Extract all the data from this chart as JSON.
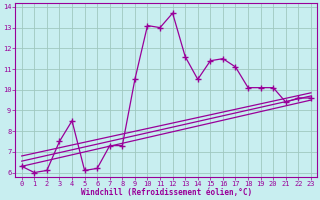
{
  "xlabel": "Windchill (Refroidissement éolien,°C)",
  "background_color": "#c8eef0",
  "grid_color": "#a0c8c0",
  "line_color": "#990099",
  "xlim": [
    -0.5,
    23.5
  ],
  "ylim": [
    5.8,
    14.2
  ],
  "xticks": [
    0,
    1,
    2,
    3,
    4,
    5,
    6,
    7,
    8,
    9,
    10,
    11,
    12,
    13,
    14,
    15,
    16,
    17,
    18,
    19,
    20,
    21,
    22,
    23
  ],
  "yticks": [
    6,
    7,
    8,
    9,
    10,
    11,
    12,
    13,
    14
  ],
  "main_x": [
    0,
    1,
    2,
    3,
    4,
    5,
    6,
    7,
    8,
    9,
    10,
    11,
    12,
    13,
    14,
    15,
    16,
    17,
    18,
    19,
    20,
    21,
    22,
    23
  ],
  "main_y": [
    6.3,
    6.0,
    6.1,
    7.5,
    8.5,
    6.1,
    6.2,
    7.3,
    7.3,
    10.5,
    13.1,
    13.0,
    13.7,
    11.6,
    10.5,
    11.4,
    11.5,
    11.1,
    10.1,
    10.1,
    10.1,
    9.4,
    9.6,
    9.6
  ],
  "trend1_x": [
    0,
    23
  ],
  "trend1_y": [
    6.3,
    9.5
  ],
  "trend2_x": [
    0,
    23
  ],
  "trend2_y": [
    6.55,
    9.7
  ],
  "trend3_x": [
    0,
    23
  ],
  "trend3_y": [
    6.8,
    9.85
  ]
}
